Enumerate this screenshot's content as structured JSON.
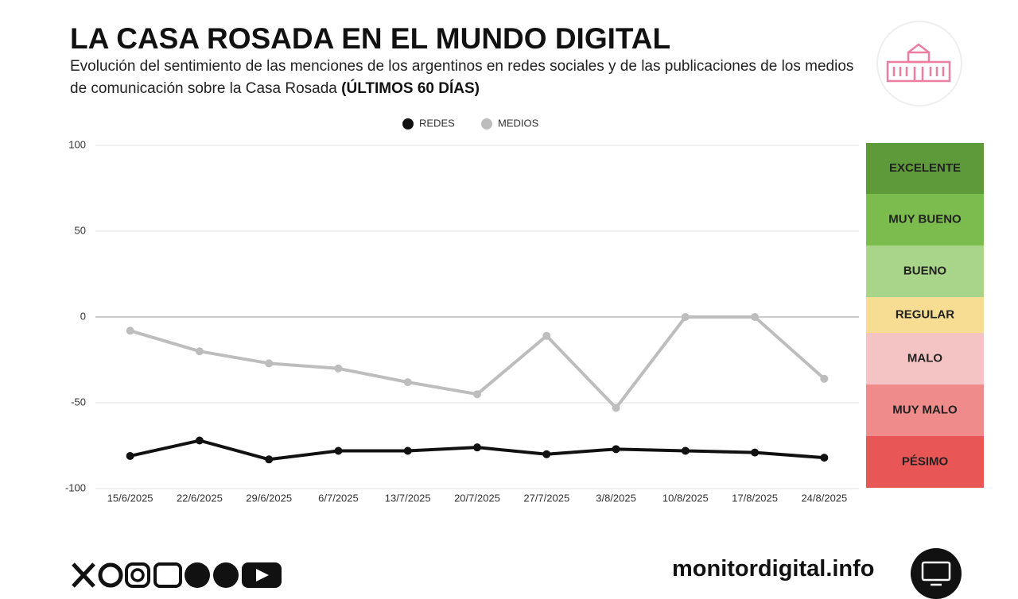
{
  "chart_data": {
    "type": "line",
    "title": "LA CASA ROSADA EN EL MUNDO DIGITAL",
    "subtitle": "Evolución del sentimiento de las menciones de los argentinos en redes sociales y de las publicaciones de los medios de comunicación sobre la Casa Rosada",
    "subtitle_bold": "(ÚLTIMOS 60 DÍAS)",
    "categories": [
      "15/6/2025",
      "22/6/2025",
      "29/6/2025",
      "6/7/2025",
      "13/7/2025",
      "20/7/2025",
      "27/7/2025",
      "3/8/2025",
      "10/8/2025",
      "17/8/2025",
      "24/8/2025"
    ],
    "series": [
      {
        "name": "REDES",
        "color": "#111111",
        "values": [
          -81,
          -72,
          -83,
          -78,
          -78,
          -76,
          -80,
          -77,
          -78,
          -79,
          -82
        ]
      },
      {
        "name": "MEDIOS",
        "color": "#bdbdbd",
        "values": [
          -8,
          -20,
          -27,
          -30,
          -38,
          -45,
          -11,
          -53,
          0,
          0,
          -36
        ]
      }
    ],
    "ylim": [
      -100,
      100
    ],
    "yticks": [
      -100,
      -50,
      0,
      50,
      100
    ],
    "grid": true,
    "legend": "top",
    "scale_bands": [
      {
        "label": "EXCELENTE",
        "color": "#5f9a3a"
      },
      {
        "label": "MUY BUENO",
        "color": "#7cbb4e"
      },
      {
        "label": "BUENO",
        "color": "#a8d58a"
      },
      {
        "label": "REGULAR",
        "color": "#f7dd94"
      },
      {
        "label": "MALO",
        "color": "#f4c4c4"
      },
      {
        "label": "MUY MALO",
        "color": "#ef8b8b"
      },
      {
        "label": "PÉSIMO",
        "color": "#e85656"
      }
    ],
    "source": "monitordigital.info"
  }
}
